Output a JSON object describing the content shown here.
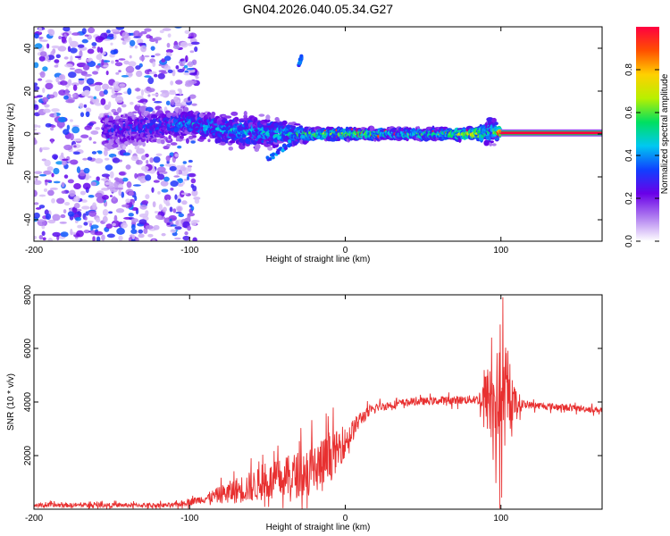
{
  "title": "GN04.2026.040.05.34.G27",
  "chart_data": [
    {
      "type": "heatmap",
      "xlabel": "Height of straight line (km)",
      "ylabel": "Frequency (Hz)",
      "xlim": [
        -200,
        165
      ],
      "ylim": [
        -50,
        50
      ],
      "xticks": [
        -200,
        -100,
        0,
        100
      ],
      "yticks": [
        -40,
        -20,
        0,
        20,
        40
      ],
      "colorbar": {
        "label": "Normalized spectral amplitude",
        "range": [
          0,
          1
        ],
        "ticks": [
          "0.0",
          "0.2",
          "0.4",
          "0.6",
          "0.8"
        ],
        "colors": [
          "#ffffff",
          "#b07ef0",
          "#6a00e8",
          "#1040ff",
          "#00c8f0",
          "#00e060",
          "#b8f000",
          "#ffd000",
          "#ff5000",
          "#ff0040"
        ]
      },
      "features": {
        "noise_region_x": [
          -200,
          -95
        ],
        "clean_line_start_x": 100,
        "clean_line_end_x": 165,
        "line_frequency_hz": 0.5,
        "drift": [
          {
            "x": -150,
            "f": 2.0,
            "spread": 10,
            "amp": 0.28
          },
          {
            "x": -120,
            "f": 3.5,
            "spread": 9,
            "amp": 0.32
          },
          {
            "x": -100,
            "f": 5.0,
            "spread": 7,
            "amp": 0.4
          },
          {
            "x": -80,
            "f": 2.0,
            "spread": 8,
            "amp": 0.42
          },
          {
            "x": -60,
            "f": 1.0,
            "spread": 10,
            "amp": 0.4
          },
          {
            "x": -40,
            "f": 0.0,
            "spread": 7,
            "amp": 0.45
          },
          {
            "x": -20,
            "f": 0.0,
            "spread": 3,
            "amp": 0.55
          },
          {
            "x": 0,
            "f": 0.0,
            "spread": 3,
            "amp": 0.6
          },
          {
            "x": 30,
            "f": 0.0,
            "spread": 3,
            "amp": 0.5
          },
          {
            "x": 60,
            "f": 0.0,
            "spread": 3,
            "amp": 0.55
          },
          {
            "x": 85,
            "f": 0.0,
            "spread": 3,
            "amp": 0.7
          },
          {
            "x": 95,
            "f": 2.0,
            "spread": 8,
            "amp": 0.4
          },
          {
            "x": 100,
            "f": 0.5,
            "spread": 1,
            "amp": 1.0
          },
          {
            "x": 165,
            "f": 0.5,
            "spread": 1,
            "amp": 1.0
          }
        ],
        "branch_high": {
          "x": [
            -30,
            -28
          ],
          "f": [
            32,
            36
          ]
        },
        "branch_low": {
          "x": [
            -50,
            -35
          ],
          "f": [
            -12,
            -4
          ]
        }
      }
    },
    {
      "type": "line",
      "xlabel": "Height of straight line (km)",
      "ylabel": "SNR (10 * v/v)",
      "xlim": [
        -200,
        165
      ],
      "ylim": [
        0,
        8000
      ],
      "xticks": [
        -200,
        -100,
        0,
        100
      ],
      "yticks": [
        2000,
        4000,
        6000,
        8000
      ],
      "color": "#e83030",
      "envelope": [
        {
          "x": -200,
          "base": 150,
          "noise": 150
        },
        {
          "x": -110,
          "base": 150,
          "noise": 150
        },
        {
          "x": -90,
          "base": 400,
          "noise": 300
        },
        {
          "x": -70,
          "base": 700,
          "noise": 900
        },
        {
          "x": -50,
          "base": 1000,
          "noise": 1200
        },
        {
          "x": -30,
          "base": 1300,
          "noise": 1600
        },
        {
          "x": -15,
          "base": 1600,
          "noise": 2000
        },
        {
          "x": 0,
          "base": 2500,
          "noise": 1000
        },
        {
          "x": 10,
          "base": 3400,
          "noise": 500
        },
        {
          "x": 20,
          "base": 3800,
          "noise": 300
        },
        {
          "x": 40,
          "base": 4000,
          "noise": 250
        },
        {
          "x": 85,
          "base": 4100,
          "noise": 300
        },
        {
          "x": 92,
          "base": 4100,
          "noise": 2500
        },
        {
          "x": 100,
          "base": 4000,
          "noise": 4000
        },
        {
          "x": 108,
          "base": 4000,
          "noise": 1200
        },
        {
          "x": 115,
          "base": 3900,
          "noise": 250
        },
        {
          "x": 165,
          "base": 3700,
          "noise": 200
        }
      ]
    }
  ]
}
